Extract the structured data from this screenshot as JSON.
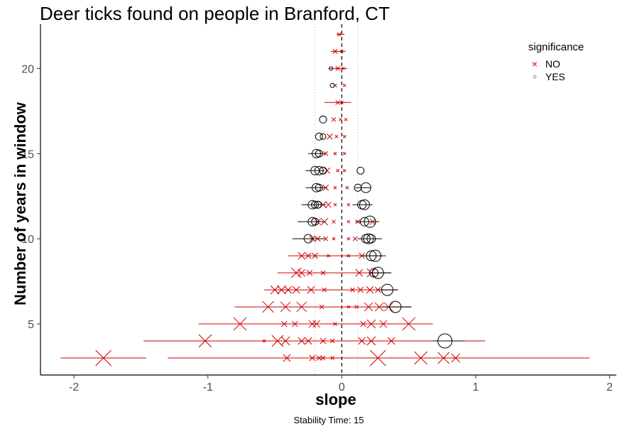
{
  "chart_data": {
    "type": "scatter",
    "title": "Deer ticks found on people in Branford, CT",
    "xlabel": "slope",
    "ylabel": "Number of years in window",
    "caption": "Stability Time: 15",
    "xlim": [
      -2.25,
      2.05
    ],
    "ylim": [
      2,
      22.6
    ],
    "x_ticks": [
      -2,
      -1,
      0,
      1,
      2
    ],
    "x_tick_labels": [
      "-2",
      "-1",
      "0",
      "1",
      "2"
    ],
    "y_ticks": [
      5,
      10,
      15,
      20
    ],
    "y_tick_labels": [
      "5",
      "10",
      "15",
      "20"
    ],
    "reference_lines": {
      "zero": 0,
      "dotted": [
        -0.2,
        0.12
      ]
    },
    "grid": false,
    "legend": {
      "title": "significance",
      "position": "top-right",
      "entries": [
        {
          "label": "NO",
          "marker": "x",
          "color": "#cc0000"
        },
        {
          "label": "YES",
          "marker": "circle",
          "color": "#000000"
        }
      ]
    },
    "series": [
      {
        "name": "NO",
        "marker": "x",
        "color": "#cc0000",
        "points": [
          {
            "y": 3,
            "x": -1.78,
            "lo": -2.1,
            "hi": -1.46,
            "size": 22
          },
          {
            "y": 3,
            "x": 0.27,
            "lo": -1.3,
            "hi": 1.85,
            "size": 22
          },
          {
            "y": 3,
            "x": 0.59,
            "lo": 0.3,
            "hi": 0.9,
            "size": 18
          },
          {
            "y": 3,
            "x": 0.76,
            "lo": 0.55,
            "hi": 0.95,
            "size": 16
          },
          {
            "y": 3,
            "x": 0.85,
            "lo": 0.7,
            "hi": 1.0,
            "size": 12
          },
          {
            "y": 3,
            "x": -0.41,
            "size": 10
          },
          {
            "y": 3,
            "x": -0.22,
            "size": 8
          },
          {
            "y": 3,
            "x": -0.17,
            "size": 7
          },
          {
            "y": 3,
            "x": -0.14,
            "size": 6
          },
          {
            "y": 3,
            "x": -0.07,
            "size": 5
          },
          {
            "y": 4,
            "x": -1.02,
            "lo": -1.48,
            "hi": -0.55,
            "size": 18
          },
          {
            "y": 4,
            "x": -0.48,
            "size": 16
          },
          {
            "y": 4,
            "x": -0.42,
            "size": 12
          },
          {
            "y": 4,
            "x": -0.3,
            "size": 10
          },
          {
            "y": 4,
            "x": -0.25,
            "size": 10
          },
          {
            "y": 4,
            "x": -0.14,
            "size": 8
          },
          {
            "y": 4,
            "x": -0.07,
            "size": 6
          },
          {
            "y": 4,
            "x": 0.15,
            "size": 10
          },
          {
            "y": 4,
            "x": 0.22,
            "size": 12
          },
          {
            "y": 4,
            "x": 0.37,
            "size": 10
          },
          {
            "y": 4,
            "x": -0.58,
            "lo": -1.05,
            "hi": 1.07,
            "size": 4
          },
          {
            "y": 5,
            "x": -0.76,
            "lo": -1.07,
            "hi": 0.68,
            "size": 18
          },
          {
            "y": 5,
            "x": 0.5,
            "size": 18
          },
          {
            "y": 5,
            "x": -0.43,
            "size": 8
          },
          {
            "y": 5,
            "x": -0.35,
            "size": 8
          },
          {
            "y": 5,
            "x": -0.22,
            "size": 10
          },
          {
            "y": 5,
            "x": -0.19,
            "size": 10
          },
          {
            "y": 5,
            "x": -0.05,
            "size": 5
          },
          {
            "y": 5,
            "x": 0.16,
            "size": 8
          },
          {
            "y": 5,
            "x": 0.22,
            "size": 12
          },
          {
            "y": 5,
            "x": 0.31,
            "size": 10
          },
          {
            "y": 6,
            "x": -0.55,
            "lo": -0.8,
            "hi": 0.52,
            "size": 16
          },
          {
            "y": 6,
            "x": -0.42,
            "size": 14
          },
          {
            "y": 6,
            "x": -0.3,
            "size": 14
          },
          {
            "y": 6,
            "x": -0.15,
            "size": 6
          },
          {
            "y": 6,
            "x": 0.05,
            "size": 4
          },
          {
            "y": 6,
            "x": 0.11,
            "size": 5
          },
          {
            "y": 6,
            "x": 0.2,
            "size": 12
          },
          {
            "y": 6,
            "x": 0.28,
            "size": 12
          },
          {
            "y": 6,
            "x": 0.35,
            "size": 12
          },
          {
            "y": 7,
            "x": -0.5,
            "lo": -0.58,
            "hi": 0.42,
            "size": 12
          },
          {
            "y": 7,
            "x": -0.45,
            "size": 12
          },
          {
            "y": 7,
            "x": -0.4,
            "size": 10
          },
          {
            "y": 7,
            "x": -0.34,
            "size": 10
          },
          {
            "y": 7,
            "x": -0.23,
            "size": 10
          },
          {
            "y": 7,
            "x": -0.13,
            "size": 6
          },
          {
            "y": 7,
            "x": 0.08,
            "size": 6
          },
          {
            "y": 7,
            "x": 0.14,
            "size": 8
          },
          {
            "y": 7,
            "x": 0.21,
            "size": 10
          },
          {
            "y": 7,
            "x": 0.27,
            "size": 8
          },
          {
            "y": 8,
            "x": -0.34,
            "lo": -0.48,
            "hi": 0.37,
            "size": 14
          },
          {
            "y": 8,
            "x": -0.3,
            "size": 10
          },
          {
            "y": 8,
            "x": -0.24,
            "size": 8
          },
          {
            "y": 8,
            "x": -0.14,
            "size": 6
          },
          {
            "y": 8,
            "x": 0.13,
            "size": 10
          },
          {
            "y": 8,
            "x": 0.22,
            "size": 12
          },
          {
            "y": 9,
            "x": -0.3,
            "lo": -0.4,
            "hi": 0.3,
            "size": 10
          },
          {
            "y": 9,
            "x": -0.25,
            "size": 8
          },
          {
            "y": 9,
            "x": -0.2,
            "size": 8
          },
          {
            "y": 9,
            "x": -0.1,
            "size": 4
          },
          {
            "y": 9,
            "x": 0.05,
            "size": 4
          },
          {
            "y": 9,
            "x": 0.15,
            "size": 8
          },
          {
            "y": 10,
            "x": -0.22,
            "size": 8
          },
          {
            "y": 10,
            "x": -0.18,
            "size": 8
          },
          {
            "y": 10,
            "x": -0.12,
            "size": 6
          },
          {
            "y": 10,
            "x": -0.06,
            "size": 4
          },
          {
            "y": 10,
            "x": 0.05,
            "size": 4
          },
          {
            "y": 10,
            "x": 0.1,
            "size": 6
          },
          {
            "y": 11,
            "x": -0.18,
            "size": 8
          },
          {
            "y": 11,
            "x": -0.13,
            "size": 10
          },
          {
            "y": 11,
            "x": -0.06,
            "size": 5
          },
          {
            "y": 11,
            "x": 0.05,
            "size": 4
          },
          {
            "y": 11,
            "x": 0.12,
            "size": 6
          },
          {
            "y": 11,
            "x": 0.23,
            "size": 8
          },
          {
            "y": 12,
            "x": -0.14,
            "size": 10
          },
          {
            "y": 12,
            "x": -0.1,
            "size": 8
          },
          {
            "y": 12,
            "x": -0.05,
            "size": 4
          },
          {
            "y": 12,
            "x": 0.05,
            "size": 4
          },
          {
            "y": 13,
            "x": -0.12,
            "size": 8
          },
          {
            "y": 13,
            "x": -0.05,
            "size": 4
          },
          {
            "y": 13,
            "x": 0.04,
            "size": 4
          },
          {
            "y": 14,
            "x": -0.11,
            "size": 8
          },
          {
            "y": 14,
            "x": -0.03,
            "size": 4
          },
          {
            "y": 14,
            "x": 0.02,
            "size": 4
          },
          {
            "y": 15,
            "x": -0.12,
            "size": 6
          },
          {
            "y": 15,
            "x": -0.05,
            "size": 4
          },
          {
            "y": 15,
            "x": 0.02,
            "size": 4
          },
          {
            "y": 16,
            "x": -0.09,
            "size": 8
          },
          {
            "y": 16,
            "x": -0.04,
            "size": 4
          },
          {
            "y": 16,
            "x": 0.02,
            "size": 4
          },
          {
            "y": 17,
            "x": -0.06,
            "size": 6
          },
          {
            "y": 17,
            "x": -0.01,
            "size": 4
          },
          {
            "y": 17,
            "x": 0.03,
            "size": 4
          },
          {
            "y": 18,
            "x": -0.03,
            "lo": -0.13,
            "hi": 0.07,
            "size": 6
          },
          {
            "y": 18,
            "x": 0.0,
            "size": 4
          },
          {
            "y": 19,
            "x": -0.05,
            "size": 5
          },
          {
            "y": 19,
            "x": 0.02,
            "size": 4
          },
          {
            "y": 20,
            "x": -0.03,
            "lo": -0.1,
            "hi": 0.04,
            "size": 6
          },
          {
            "y": 20,
            "x": 0.01,
            "size": 4
          },
          {
            "y": 21,
            "x": -0.05,
            "lo": -0.08,
            "hi": 0.03,
            "size": 6
          },
          {
            "y": 21,
            "x": 0.0,
            "size": 4
          },
          {
            "y": 22,
            "x": -0.02,
            "lo": -0.04,
            "hi": 0.02,
            "size": 5
          }
        ]
      },
      {
        "name": "YES",
        "marker": "circle",
        "color": "#000000",
        "points": [
          {
            "y": 4,
            "x": 0.77,
            "lo": 0.68,
            "hi": 0.92,
            "size": 20
          },
          {
            "y": 6,
            "x": 0.4,
            "lo": 0.3,
            "hi": 0.52,
            "size": 16
          },
          {
            "y": 7,
            "x": 0.34,
            "lo": 0.28,
            "hi": 0.42,
            "size": 16
          },
          {
            "y": 8,
            "x": 0.27,
            "lo": 0.2,
            "hi": 0.37,
            "size": 16
          },
          {
            "y": 8,
            "x": 0.24,
            "size": 12
          },
          {
            "y": 9,
            "x": 0.25,
            "lo": 0.15,
            "hi": 0.33,
            "size": 16
          },
          {
            "y": 9,
            "x": 0.22,
            "size": 14
          },
          {
            "y": 10,
            "x": -0.25,
            "lo": -0.37,
            "hi": -0.13,
            "size": 12
          },
          {
            "y": 10,
            "x": 0.2,
            "lo": 0.12,
            "hi": 0.3,
            "size": 14
          },
          {
            "y": 10,
            "x": 0.22,
            "size": 12
          },
          {
            "y": 10,
            "x": 0.18,
            "size": 12
          },
          {
            "y": 11,
            "x": -0.22,
            "lo": -0.33,
            "hi": -0.12,
            "size": 12
          },
          {
            "y": 11,
            "x": -0.2,
            "size": 10
          },
          {
            "y": 11,
            "x": 0.21,
            "lo": 0.1,
            "hi": 0.28,
            "size": 16
          },
          {
            "y": 11,
            "x": 0.17,
            "size": 12
          },
          {
            "y": 12,
            "x": -0.22,
            "lo": -0.3,
            "hi": -0.12,
            "size": 12
          },
          {
            "y": 12,
            "x": -0.2,
            "size": 10
          },
          {
            "y": 12,
            "x": -0.18,
            "size": 10
          },
          {
            "y": 12,
            "x": 0.17,
            "lo": 0.08,
            "hi": 0.23,
            "size": 14
          },
          {
            "y": 12,
            "x": 0.15,
            "size": 12
          },
          {
            "y": 13,
            "x": -0.19,
            "lo": -0.27,
            "hi": -0.11,
            "size": 12
          },
          {
            "y": 13,
            "x": -0.17,
            "size": 10
          },
          {
            "y": 13,
            "x": 0.18,
            "lo": 0.1,
            "hi": 0.22,
            "size": 14
          },
          {
            "y": 13,
            "x": 0.12,
            "size": 10
          },
          {
            "y": 14,
            "x": -0.2,
            "lo": -0.27,
            "hi": -0.13,
            "size": 12
          },
          {
            "y": 14,
            "x": -0.17,
            "size": 12
          },
          {
            "y": 14,
            "x": -0.14,
            "size": 10
          },
          {
            "y": 14,
            "x": 0.14,
            "size": 10
          },
          {
            "y": 15,
            "x": -0.19,
            "lo": -0.25,
            "hi": -0.12,
            "size": 12
          },
          {
            "y": 15,
            "x": -0.17,
            "size": 10
          },
          {
            "y": 16,
            "x": -0.17,
            "size": 10
          },
          {
            "y": 16,
            "x": -0.14,
            "size": 8
          },
          {
            "y": 17,
            "x": -0.14,
            "size": 10
          },
          {
            "y": 19,
            "x": -0.07,
            "size": 6
          },
          {
            "y": 20,
            "x": -0.08,
            "size": 5
          }
        ]
      }
    ]
  }
}
